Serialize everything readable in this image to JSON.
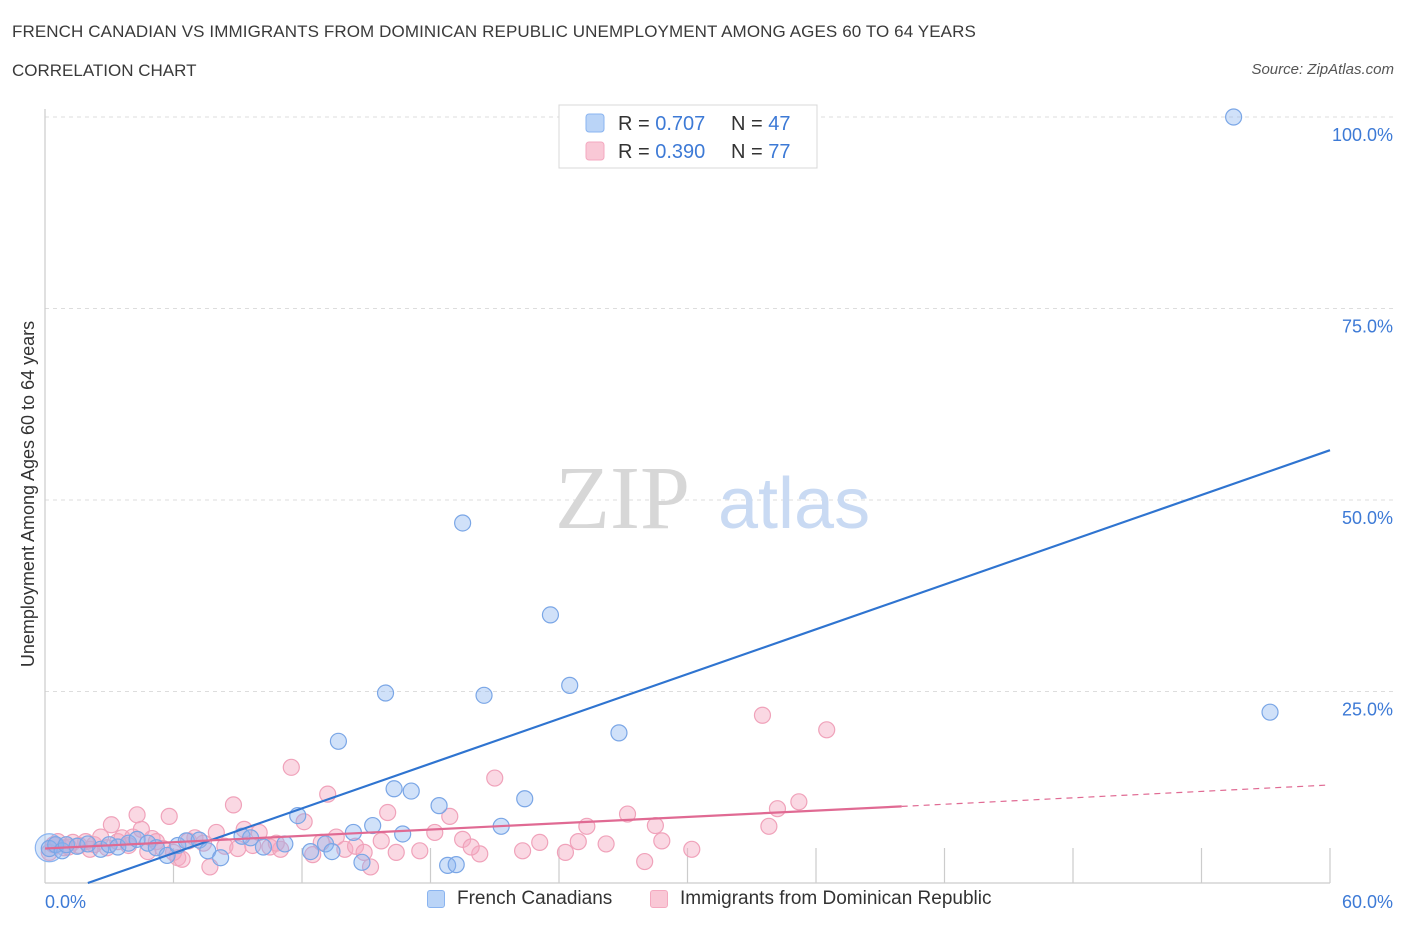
{
  "title": "FRENCH CANADIAN VS IMMIGRANTS FROM DOMINICAN REPUBLIC UNEMPLOYMENT AMONG AGES 60 TO 64 YEARS",
  "subtitle": "CORRELATION CHART",
  "source": "Source: ZipAtlas.com",
  "watermark": {
    "zip": "ZIP",
    "atlas": "atlas"
  },
  "colors": {
    "blue": "#8ab4f0",
    "blue_line": "#2f74d0",
    "blue_text": "#3d7ad6",
    "pink": "#f4a9c0",
    "pink_line": "#e06a93"
  },
  "stats_legend": [
    {
      "r_label": "R = ",
      "r_value": "0.707",
      "n_label": "N = ",
      "n_value": "47"
    },
    {
      "r_label": "R = ",
      "r_value": "0.390",
      "n_label": "N = ",
      "n_value": "77"
    }
  ],
  "chart_data": {
    "type": "scatter",
    "title": "FRENCH CANADIAN VS IMMIGRANTS FROM DOMINICAN REPUBLIC UNEMPLOYMENT AMONG AGES 60 TO 64 YEARS",
    "xlabel": "",
    "ylabel": "Unemployment Among Ages 60 to 64 years",
    "xlim": [
      0,
      60
    ],
    "ylim": [
      0,
      100
    ],
    "x_tick_labels": [
      "0.0%",
      "60.0%"
    ],
    "y_tick_values": [
      25,
      50,
      75,
      100
    ],
    "y_tick_labels": [
      "25.0%",
      "50.0%",
      "75.0%",
      "100.0%"
    ],
    "legend_position": "bottom",
    "series": [
      {
        "name": "French Canadians",
        "R": 0.707,
        "N": 47,
        "points": [
          [
            0.2,
            4.5
          ],
          [
            0.5,
            5.0
          ],
          [
            0.8,
            4.2
          ],
          [
            1.0,
            5.0
          ],
          [
            1.5,
            4.8
          ],
          [
            2.0,
            5.1
          ],
          [
            2.6,
            4.4
          ],
          [
            3.0,
            5.0
          ],
          [
            3.4,
            4.7
          ],
          [
            3.9,
            5.2
          ],
          [
            4.3,
            5.7
          ],
          [
            4.8,
            5.2
          ],
          [
            5.2,
            4.6
          ],
          [
            5.7,
            3.6
          ],
          [
            6.2,
            4.9
          ],
          [
            6.6,
            5.5
          ],
          [
            7.2,
            5.6
          ],
          [
            7.6,
            4.2
          ],
          [
            8.2,
            3.3
          ],
          [
            9.2,
            6.1
          ],
          [
            9.6,
            5.9
          ],
          [
            10.2,
            4.7
          ],
          [
            11.2,
            5.1
          ],
          [
            11.8,
            8.8
          ],
          [
            12.4,
            4.1
          ],
          [
            13.1,
            5.1
          ],
          [
            13.4,
            4.1
          ],
          [
            13.7,
            18.5
          ],
          [
            14.4,
            6.6
          ],
          [
            14.8,
            2.7
          ],
          [
            15.3,
            7.5
          ],
          [
            15.9,
            24.8
          ],
          [
            16.3,
            12.3
          ],
          [
            16.7,
            6.4
          ],
          [
            17.1,
            12.0
          ],
          [
            18.4,
            10.1
          ],
          [
            18.8,
            2.3
          ],
          [
            19.2,
            2.4
          ],
          [
            19.5,
            47.0
          ],
          [
            20.5,
            24.5
          ],
          [
            21.3,
            7.4
          ],
          [
            22.4,
            11.0
          ],
          [
            23.6,
            35.0
          ],
          [
            24.5,
            25.8
          ],
          [
            26.8,
            19.6
          ],
          [
            55.5,
            100
          ],
          [
            57.2,
            22.3
          ]
        ],
        "trendline": {
          "x": [
            2,
            60
          ],
          "y": [
            0,
            56.5
          ],
          "style": "solid"
        }
      },
      {
        "name": "Immigrants from Dominican Republic",
        "R": 0.39,
        "N": 77,
        "points": [
          [
            0.2,
            4.0
          ],
          [
            0.6,
            5.4
          ],
          [
            0.9,
            4.6
          ],
          [
            1.3,
            5.3
          ],
          [
            1.6,
            4.9
          ],
          [
            1.9,
            5.4
          ],
          [
            2.3,
            5.0
          ],
          [
            2.6,
            6.0
          ],
          [
            2.9,
            4.6
          ],
          [
            3.1,
            7.6
          ],
          [
            3.4,
            5.4
          ],
          [
            3.6,
            5.9
          ],
          [
            3.9,
            4.9
          ],
          [
            4.1,
            6.0
          ],
          [
            4.3,
            8.9
          ],
          [
            4.5,
            7.0
          ],
          [
            4.8,
            4.1
          ],
          [
            5.0,
            5.8
          ],
          [
            5.2,
            5.4
          ],
          [
            5.5,
            4.5
          ],
          [
            5.8,
            8.7
          ],
          [
            6.2,
            3.3
          ],
          [
            6.4,
            3.1
          ],
          [
            6.7,
            5.5
          ],
          [
            7.0,
            5.9
          ],
          [
            7.4,
            5.2
          ],
          [
            7.7,
            2.1
          ],
          [
            8.0,
            6.6
          ],
          [
            8.4,
            4.8
          ],
          [
            8.8,
            10.2
          ],
          [
            9.0,
            4.5
          ],
          [
            9.3,
            7.0
          ],
          [
            9.7,
            4.9
          ],
          [
            10.0,
            6.6
          ],
          [
            10.5,
            4.7
          ],
          [
            11.0,
            4.4
          ],
          [
            11.5,
            15.1
          ],
          [
            12.1,
            8.0
          ],
          [
            12.5,
            3.7
          ],
          [
            12.9,
            5.3
          ],
          [
            13.2,
            11.6
          ],
          [
            13.6,
            6.0
          ],
          [
            14.0,
            4.4
          ],
          [
            14.5,
            4.8
          ],
          [
            14.9,
            4.0
          ],
          [
            15.2,
            2.1
          ],
          [
            15.7,
            5.5
          ],
          [
            16.0,
            9.2
          ],
          [
            16.4,
            4.0
          ],
          [
            17.5,
            4.2
          ],
          [
            18.2,
            6.6
          ],
          [
            18.9,
            8.7
          ],
          [
            19.5,
            5.7
          ],
          [
            20.3,
            3.8
          ],
          [
            21.0,
            13.7
          ],
          [
            22.3,
            4.2
          ],
          [
            23.1,
            5.3
          ],
          [
            24.3,
            4.0
          ],
          [
            24.9,
            5.4
          ],
          [
            25.3,
            7.4
          ],
          [
            26.2,
            5.1
          ],
          [
            27.2,
            9.0
          ],
          [
            28.0,
            2.8
          ],
          [
            28.5,
            7.5
          ],
          [
            28.8,
            5.5
          ],
          [
            30.2,
            4.4
          ],
          [
            33.5,
            21.9
          ],
          [
            33.8,
            7.4
          ],
          [
            35.2,
            10.6
          ],
          [
            36.5,
            20.0
          ],
          [
            0.4,
            5.0
          ],
          [
            1.1,
            4.7
          ],
          [
            2.1,
            4.4
          ],
          [
            6.0,
            4.0
          ],
          [
            10.8,
            5.2
          ],
          [
            19.9,
            4.7
          ],
          [
            34.2,
            9.7
          ]
        ],
        "trendline": {
          "x": [
            0,
            40
          ],
          "y": [
            4.5,
            10.0
          ],
          "style": "solid",
          "extension": {
            "x": [
              40,
              60
            ],
            "y": [
              10.0,
              12.8
            ],
            "style": "dashed"
          }
        }
      }
    ]
  },
  "bottom_legend": [
    {
      "label": "French Canadians"
    },
    {
      "label": "Immigrants from Dominican Republic"
    }
  ]
}
